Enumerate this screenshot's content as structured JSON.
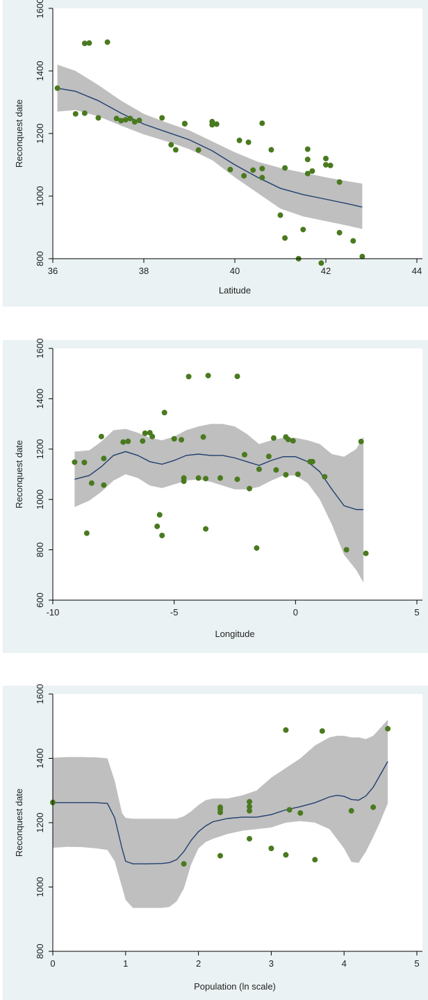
{
  "colors": {
    "panel_bg": "#eaf2f3",
    "plot_bg": "#ffffff",
    "band": "#bfbfbf",
    "line": "#1f3f6e",
    "point": "#4a7a1f",
    "axis": "#000000"
  },
  "chart_data": [
    {
      "type": "scatter",
      "xlabel": "Latitude",
      "ylabel": "Reconquest date",
      "xlim": [
        36,
        44
      ],
      "ylim": [
        800,
        1600
      ],
      "xticks": [
        "36",
        "38",
        "40",
        "42",
        "44"
      ],
      "yticks": [
        "800",
        "1000",
        "1200",
        "1400",
        "1600"
      ],
      "xtick_values": [
        36,
        38,
        40,
        42,
        44
      ],
      "ytick_values": [
        800,
        1000,
        1200,
        1400,
        1600
      ],
      "points": [
        [
          36.1,
          1345
        ],
        [
          36.5,
          1263
        ],
        [
          36.7,
          1265
        ],
        [
          36.7,
          1488
        ],
        [
          36.8,
          1489
        ],
        [
          37.0,
          1250
        ],
        [
          37.2,
          1492
        ],
        [
          37.4,
          1248
        ],
        [
          37.5,
          1241
        ],
        [
          37.6,
          1244
        ],
        [
          37.7,
          1248
        ],
        [
          37.8,
          1237
        ],
        [
          37.9,
          1242
        ],
        [
          38.4,
          1250
        ],
        [
          38.6,
          1164
        ],
        [
          38.7,
          1148
        ],
        [
          38.9,
          1231
        ],
        [
          38.9,
          1232
        ],
        [
          39.2,
          1147
        ],
        [
          39.5,
          1238
        ],
        [
          39.5,
          1228
        ],
        [
          39.6,
          1230
        ],
        [
          39.9,
          1085
        ],
        [
          40.1,
          1178
        ],
        [
          40.2,
          1065
        ],
        [
          40.3,
          1172
        ],
        [
          40.4,
          1083
        ],
        [
          40.6,
          1233
        ],
        [
          40.6,
          1088
        ],
        [
          40.6,
          1059
        ],
        [
          40.8,
          1148
        ],
        [
          41.0,
          939
        ],
        [
          41.1,
          1090
        ],
        [
          41.1,
          866
        ],
        [
          41.4,
          800
        ],
        [
          41.5,
          893
        ],
        [
          41.6,
          1150
        ],
        [
          41.6,
          1072
        ],
        [
          41.6,
          1117
        ],
        [
          41.7,
          1080
        ],
        [
          41.9,
          786
        ],
        [
          42.0,
          1120
        ],
        [
          42.0,
          1100
        ],
        [
          42.1,
          1098
        ],
        [
          42.3,
          1045
        ],
        [
          42.3,
          883
        ],
        [
          42.6,
          857
        ],
        [
          42.8,
          807
        ]
      ],
      "fit": {
        "x": [
          36.1,
          36.5,
          37.0,
          37.5,
          38.0,
          38.5,
          39.0,
          39.5,
          40.0,
          40.5,
          41.0,
          41.5,
          42.0,
          42.5,
          42.8
        ],
        "y": [
          1345,
          1335,
          1305,
          1265,
          1230,
          1205,
          1180,
          1145,
          1100,
          1060,
          1025,
          1005,
          990,
          975,
          965
        ],
        "lower": [
          1270,
          1275,
          1255,
          1225,
          1197,
          1175,
          1150,
          1115,
          1060,
          1010,
          960,
          935,
          920,
          905,
          895
        ],
        "upper": [
          1420,
          1400,
          1355,
          1305,
          1263,
          1235,
          1210,
          1175,
          1140,
          1110,
          1090,
          1075,
          1060,
          1047,
          1040
        ]
      }
    },
    {
      "type": "scatter",
      "xlabel": "Longitude",
      "ylabel": "Reconquest date",
      "xlim": [
        -10,
        5
      ],
      "ylim": [
        600,
        1600
      ],
      "xticks": [
        "-10",
        "-5",
        "0",
        "5"
      ],
      "yticks": [
        "600",
        "800",
        "1000",
        "1200",
        "1400",
        "1600"
      ],
      "xtick_values": [
        -10,
        -5,
        0,
        5
      ],
      "ytick_values": [
        600,
        800,
        1000,
        1200,
        1400,
        1600
      ],
      "points": [
        [
          -9.1,
          1148
        ],
        [
          -8.7,
          1147
        ],
        [
          -8.6,
          866
        ],
        [
          -8.4,
          1065
        ],
        [
          -8.0,
          1250
        ],
        [
          -7.9,
          1163
        ],
        [
          -7.9,
          1057
        ],
        [
          -7.1,
          1228
        ],
        [
          -6.9,
          1231
        ],
        [
          -6.3,
          1232
        ],
        [
          -6.2,
          1263
        ],
        [
          -6.0,
          1265
        ],
        [
          -5.9,
          1250
        ],
        [
          -5.7,
          893
        ],
        [
          -5.6,
          939
        ],
        [
          -5.5,
          857
        ],
        [
          -5.4,
          1345
        ],
        [
          -5.0,
          1241
        ],
        [
          -4.7,
          1237
        ],
        [
          -4.6,
          1085
        ],
        [
          -4.6,
          1072
        ],
        [
          -4.4,
          1488
        ],
        [
          -4.0,
          1085
        ],
        [
          -3.8,
          1248
        ],
        [
          -3.7,
          1083
        ],
        [
          -3.7,
          883
        ],
        [
          -3.6,
          1492
        ],
        [
          -3.1,
          1085
        ],
        [
          -2.4,
          1080
        ],
        [
          -2.4,
          1489
        ],
        [
          -2.1,
          1178
        ],
        [
          -1.9,
          1043
        ],
        [
          -1.6,
          807
        ],
        [
          -1.5,
          1120
        ],
        [
          -1.1,
          1171
        ],
        [
          -0.9,
          1244
        ],
        [
          -0.8,
          1117
        ],
        [
          -0.4,
          1248
        ],
        [
          -0.4,
          1098
        ],
        [
          -0.3,
          1238
        ],
        [
          -0.1,
          1233
        ],
        [
          0.1,
          1100
        ],
        [
          0.6,
          1150
        ],
        [
          0.7,
          1150
        ],
        [
          1.2,
          1090
        ],
        [
          2.1,
          800
        ],
        [
          2.7,
          1230
        ],
        [
          2.9,
          786
        ]
      ],
      "fit": {
        "x": [
          -9.1,
          -8.5,
          -8.0,
          -7.5,
          -7.0,
          -6.5,
          -6.0,
          -5.5,
          -5.0,
          -4.5,
          -4.0,
          -3.5,
          -3.0,
          -2.5,
          -2.0,
          -1.5,
          -1.0,
          -0.5,
          0.0,
          0.5,
          1.0,
          1.5,
          2.0,
          2.5,
          2.8
        ],
        "y": [
          1080,
          1095,
          1130,
          1175,
          1190,
          1175,
          1150,
          1140,
          1155,
          1175,
          1180,
          1175,
          1175,
          1165,
          1150,
          1135,
          1155,
          1170,
          1170,
          1150,
          1110,
          1040,
          975,
          960,
          960
        ],
        "lower": [
          970,
          995,
          1030,
          1075,
          1100,
          1085,
          1055,
          1045,
          1060,
          1075,
          1080,
          1070,
          1055,
          1040,
          1040,
          1050,
          1075,
          1095,
          1095,
          1065,
          1000,
          900,
          780,
          720,
          670
        ],
        "upper": [
          1190,
          1195,
          1230,
          1275,
          1280,
          1265,
          1245,
          1235,
          1250,
          1275,
          1290,
          1300,
          1300,
          1290,
          1260,
          1220,
          1235,
          1245,
          1245,
          1235,
          1220,
          1180,
          1170,
          1200,
          1250
        ]
      }
    },
    {
      "type": "scatter",
      "xlabel": "Population (ln scale)",
      "ylabel": "Reconquest date",
      "xlim": [
        0,
        5
      ],
      "ylim": [
        800,
        1600
      ],
      "xticks": [
        "0",
        "1",
        "2",
        "3",
        "4",
        "5"
      ],
      "yticks": [
        "800",
        "1000",
        "1200",
        "1400",
        "1600"
      ],
      "xtick_values": [
        0,
        1,
        2,
        3,
        4,
        5
      ],
      "ytick_values": [
        800,
        1000,
        1200,
        1400,
        1600
      ],
      "points": [
        [
          0.0,
          1263
        ],
        [
          1.8,
          1072
        ],
        [
          2.3,
          1248
        ],
        [
          2.3,
          1242
        ],
        [
          2.3,
          1232
        ],
        [
          2.3,
          1097
        ],
        [
          2.7,
          1265
        ],
        [
          2.7,
          1250
        ],
        [
          2.7,
          1237
        ],
        [
          2.7,
          1150
        ],
        [
          3.0,
          1120
        ],
        [
          3.2,
          1488
        ],
        [
          3.2,
          1100
        ],
        [
          3.25,
          1240
        ],
        [
          3.4,
          1230
        ],
        [
          3.6,
          1085
        ],
        [
          3.7,
          1485
        ],
        [
          4.1,
          1237
        ],
        [
          4.4,
          1248
        ],
        [
          4.6,
          1492
        ]
      ],
      "fit": {
        "x": [
          0.0,
          0.2,
          0.4,
          0.6,
          0.75,
          0.85,
          0.95,
          1.0,
          1.1,
          1.3,
          1.5,
          1.6,
          1.7,
          1.8,
          1.9,
          2.0,
          2.1,
          2.2,
          2.4,
          2.6,
          2.8,
          3.0,
          3.2,
          3.4,
          3.6,
          3.8,
          3.9,
          4.0,
          4.1,
          4.2,
          4.3,
          4.4,
          4.5,
          4.6
        ],
        "y": [
          1262,
          1262,
          1262,
          1262,
          1260,
          1215,
          1120,
          1080,
          1072,
          1072,
          1073,
          1076,
          1085,
          1110,
          1145,
          1172,
          1190,
          1203,
          1213,
          1217,
          1217,
          1225,
          1240,
          1250,
          1262,
          1280,
          1285,
          1282,
          1272,
          1270,
          1283,
          1310,
          1350,
          1390
        ],
        "lower": [
          1122,
          1125,
          1124,
          1120,
          1115,
          1080,
          1000,
          960,
          935,
          935,
          935,
          938,
          955,
          995,
          1070,
          1120,
          1140,
          1150,
          1165,
          1175,
          1180,
          1185,
          1200,
          1205,
          1200,
          1180,
          1150,
          1120,
          1078,
          1075,
          1110,
          1155,
          1205,
          1260
        ],
        "upper": [
          1402,
          1404,
          1404,
          1403,
          1400,
          1330,
          1230,
          1215,
          1212,
          1212,
          1212,
          1212,
          1212,
          1220,
          1235,
          1255,
          1270,
          1275,
          1275,
          1285,
          1300,
          1340,
          1370,
          1400,
          1440,
          1465,
          1470,
          1470,
          1465,
          1465,
          1460,
          1470,
          1495,
          1520
        ]
      }
    }
  ]
}
